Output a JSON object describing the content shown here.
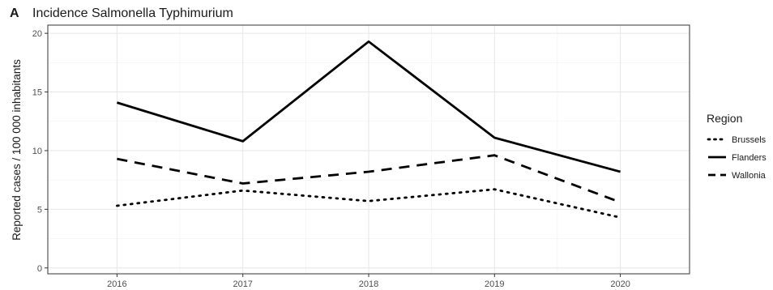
{
  "panel_label": "A",
  "chart_data": {
    "type": "line",
    "title": "Incidence Salmonella Typhimurium",
    "xlabel": "",
    "ylabel": "Reported cases / 100 000 inhabitants",
    "x": [
      2016,
      2017,
      2018,
      2019,
      2020
    ],
    "x_tick_labels": [
      "2016",
      "2017",
      "2018",
      "2019",
      "2020"
    ],
    "xlim": [
      2015.45,
      2020.55
    ],
    "ylim": [
      -0.5,
      20.7
    ],
    "y_ticks": [
      0,
      5,
      10,
      15,
      20
    ],
    "y_tick_labels": [
      "0",
      "5",
      "10",
      "15",
      "20"
    ],
    "grid": true,
    "legend": {
      "title": "Region",
      "position": "right"
    },
    "series": [
      {
        "name": "Brussels",
        "linetype": "dotted",
        "color": "#000000",
        "values": [
          5.3,
          6.6,
          5.7,
          6.7,
          4.3
        ]
      },
      {
        "name": "Flanders",
        "linetype": "solid",
        "color": "#000000",
        "values": [
          14.1,
          10.8,
          19.3,
          11.1,
          8.2
        ]
      },
      {
        "name": "Wallonia",
        "linetype": "dashed",
        "color": "#000000",
        "values": [
          9.3,
          7.2,
          8.2,
          9.6,
          5.6
        ]
      }
    ]
  }
}
